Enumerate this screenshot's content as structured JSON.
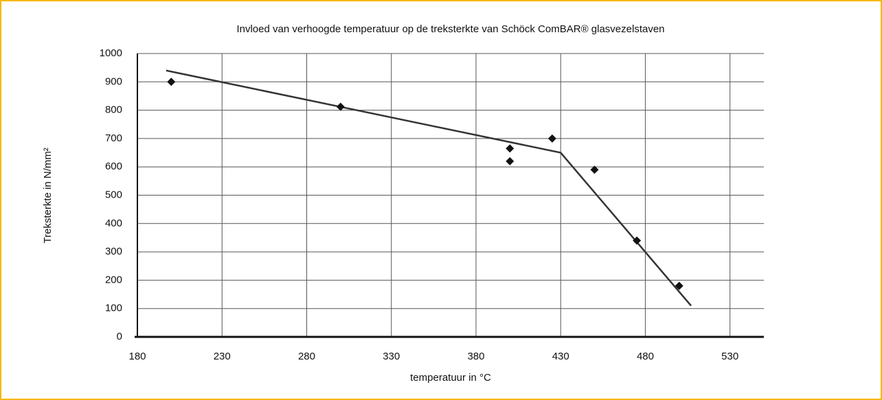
{
  "chart_data": {
    "type": "scatter",
    "title": "Invloed van verhoogde temperatuur op de treksterkte van Schöck ComBAR® glasvezelstaven",
    "x_label": "temperatuur in °C",
    "y_label": "Treksterkte in N/mm²",
    "points": {
      "color": "#111111",
      "x": [
        200,
        300,
        400,
        400,
        425,
        450,
        475,
        500
      ],
      "values": [
        900,
        812,
        665,
        620,
        700,
        590,
        340,
        180
      ]
    },
    "trend": {
      "color": "#333333",
      "x": [
        197,
        430,
        507
      ],
      "values": [
        940,
        650,
        110
      ]
    },
    "xlim": [
      180,
      550
    ],
    "xticks": [
      180,
      230,
      280,
      330,
      380,
      430,
      480,
      530
    ],
    "ylim": [
      0,
      1000
    ],
    "yticks": [
      0,
      100,
      200,
      300,
      400,
      500,
      600,
      700,
      800,
      900,
      1000
    ],
    "grid": true
  }
}
